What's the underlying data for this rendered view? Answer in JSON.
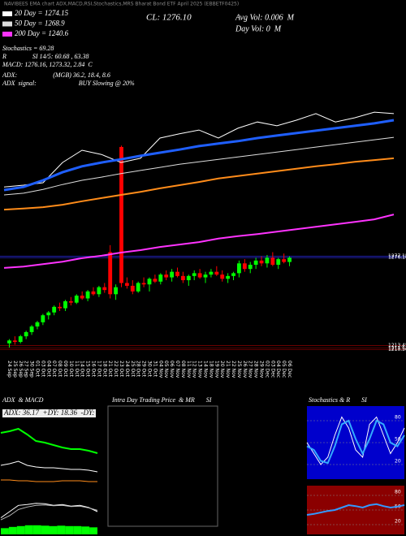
{
  "header": "NAVIBEES EMA chart ADX,MACD,RSI,Stochastics,MRS Bharat Bond ETF April 2025 (EBBETF0425)",
  "info": {
    "stoch": "Stochastics = 69.28",
    "rsi": "R                SI 14/5: 60.68 , 63.38",
    "macd": "MACD: 1276.16, 1273.32, 2.84  C",
    "adx": "ADX:                      (MGB) 36.2, 18.4, 8.6",
    "adx_signal": "ADX  signal:                          BUY Slowing @ 20%",
    "close": "CL: 1276.10",
    "avg_vol": "Avg Vol: 0.006  M",
    "day_vol": "Day Vol: 0  M"
  },
  "chart_data": [
    {
      "type": "candlestick",
      "categories": [
        "24 Sep",
        "25 Sep",
        "26 Sep",
        "27 Sep",
        "30 Sep",
        "01 Oct",
        "03 Oct",
        "04 Oct",
        "07 Oct",
        "08 Oct",
        "09 Oct",
        "10 Oct",
        "11 Oct",
        "14 Oct",
        "15 Oct",
        "16 Oct",
        "17 Oct",
        "18 Oct",
        "21 Oct",
        "22 Oct",
        "23 Oct",
        "24 Oct",
        "25 Oct",
        "28 Oct",
        "29 Oct",
        "30 Oct",
        "31 Oct",
        "04 Nov",
        "05 Nov",
        "06 Nov",
        "07 Nov",
        "08 Nov",
        "11 Nov",
        "12 Nov",
        "13 Nov",
        "14 Nov",
        "18 Nov",
        "19 Nov",
        "20 Nov",
        "21 Nov",
        "22 Nov",
        "25 Nov",
        "26 Nov",
        "27 Nov",
        "28 Nov",
        "29 Nov",
        "02 Dec",
        "03 Dec",
        "04 Dec",
        "05 Dec",
        "06 Dec"
      ],
      "open": [
        1215,
        1217,
        1216,
        1220,
        1223,
        1227,
        1230,
        1235,
        1237,
        1241,
        1240,
        1245,
        1244,
        1249,
        1247,
        1252,
        1250,
        1255,
        1280,
        1250,
        1355,
        1258,
        1256,
        1252,
        1258,
        1257,
        1261,
        1259,
        1264,
        1262,
        1266,
        1263,
        1260,
        1263,
        1265,
        1262,
        1264,
        1266,
        1264,
        1261,
        1263,
        1265,
        1272,
        1268,
        1271,
        1274,
        1272,
        1276,
        1271,
        1275,
        1273
      ],
      "high": [
        1218,
        1220,
        1221,
        1224,
        1228,
        1231,
        1236,
        1238,
        1242,
        1244,
        1246,
        1248,
        1250,
        1252,
        1253,
        1255,
        1256,
        1258,
        1285,
        1257,
        1356,
        1262,
        1260,
        1259,
        1262,
        1262,
        1264,
        1265,
        1267,
        1268,
        1269,
        1266,
        1264,
        1267,
        1268,
        1266,
        1268,
        1270,
        1267,
        1265,
        1266,
        1274,
        1275,
        1273,
        1276,
        1277,
        1278,
        1280,
        1276,
        1279,
        1277
      ],
      "low": [
        1212,
        1214,
        1215,
        1218,
        1221,
        1225,
        1228,
        1232,
        1235,
        1238,
        1238,
        1242,
        1243,
        1246,
        1245,
        1249,
        1248,
        1251,
        1247,
        1246,
        1255,
        1254,
        1250,
        1251,
        1255,
        1252,
        1258,
        1257,
        1260,
        1259,
        1262,
        1258,
        1256,
        1260,
        1261,
        1258,
        1262,
        1263,
        1259,
        1258,
        1260,
        1262,
        1266,
        1265,
        1268,
        1270,
        1269,
        1270,
        1268,
        1272,
        1270
      ],
      "close": [
        1217,
        1216,
        1220,
        1223,
        1227,
        1230,
        1235,
        1237,
        1241,
        1240,
        1245,
        1244,
        1249,
        1247,
        1252,
        1250,
        1255,
        1253,
        1250,
        1255,
        1258,
        1256,
        1252,
        1258,
        1257,
        1261,
        1259,
        1264,
        1262,
        1266,
        1263,
        1260,
        1263,
        1265,
        1262,
        1264,
        1266,
        1264,
        1261,
        1263,
        1265,
        1272,
        1268,
        1271,
        1274,
        1272,
        1276,
        1271,
        1275,
        1273,
        1276
      ],
      "up_color": "#00ff00",
      "down_color": "#ff0000",
      "ylim": [
        1205,
        1454
      ],
      "yticks": [
        1277.15,
        {
          "value": 1276.1,
          "label": "1276.10"
        },
        1213.45,
        1211.51,
        {
          "value": 1210.5,
          "label": "1210.50"
        }
      ],
      "grid_colors": [
        "#3030ff",
        "#3030ff",
        "#aa0000",
        "#aa0000",
        "#aa0000"
      ]
    },
    {
      "type": "line",
      "ylim": [
        0,
        100
      ],
      "series": [
        {
          "color": "#ffffff",
          "width": 1,
          "values": [
            48.8,
            49.3,
            50.0,
            55.8,
            59.3,
            58.1,
            55.8,
            57.0,
            62.8,
            64.0,
            65.1,
            62.8,
            65.6,
            67.4,
            66.3,
            67.9,
            69.8,
            67.4,
            68.6,
            70.2,
            69.8
          ]
        },
        {
          "color": "#1f5fff",
          "width": 3,
          "values": [
            47.9,
            48.8,
            50.7,
            53.0,
            54.7,
            55.8,
            56.7,
            57.7,
            58.6,
            59.5,
            60.5,
            61.2,
            61.9,
            62.8,
            63.5,
            64.2,
            64.9,
            65.6,
            66.3,
            67.0,
            67.9
          ]
        },
        {
          "color": "#dddddd",
          "width": 1,
          "values": [
            46.5,
            47.0,
            48.1,
            49.5,
            50.7,
            51.6,
            52.6,
            53.5,
            54.4,
            55.3,
            56.0,
            56.7,
            57.4,
            58.1,
            58.8,
            59.5,
            60.2,
            60.9,
            61.6,
            62.3,
            63.0
          ]
        },
        {
          "color": "#ff8c1a",
          "width": 2,
          "values": [
            42.3,
            42.6,
            43.0,
            43.7,
            44.7,
            45.6,
            46.5,
            47.4,
            48.4,
            49.3,
            50.2,
            51.2,
            51.9,
            52.6,
            53.3,
            54.0,
            54.7,
            55.3,
            56.0,
            56.5,
            57.0
          ]
        },
        {
          "color": "#ff33ff",
          "width": 2,
          "values": [
            25.6,
            26.0,
            26.7,
            27.4,
            28.4,
            29.1,
            30.0,
            30.7,
            31.6,
            32.3,
            33.0,
            34.0,
            34.7,
            35.3,
            36.0,
            36.7,
            37.4,
            38.1,
            38.8,
            39.5,
            40.9
          ]
        }
      ],
      "legend": [
        {
          "label": "20 Day = 1274.15",
          "color": "#ffffff"
        },
        {
          "label": "50 Day = 1268.9",
          "color": "#dddddd"
        },
        {
          "label": "200 Day = 1240.6",
          "color": "#ff33ff"
        }
      ]
    },
    {
      "type": "line",
      "title": "ADX  & MACD",
      "label": "ADX: 36.17  +DY: 18.36  -DY: 8.6",
      "ylim": [
        0,
        100
      ],
      "series": [
        {
          "color": "#00ff00",
          "width": 2,
          "values": [
            70,
            72,
            75,
            68,
            60,
            58,
            55,
            52,
            50,
            50,
            48,
            45
          ]
        },
        {
          "color": "#ffffff",
          "width": 1,
          "values": [
            30,
            32,
            35,
            30,
            28,
            27,
            27,
            26,
            25,
            25,
            24,
            22
          ]
        },
        {
          "color": "#ff8c1a",
          "width": 1,
          "values": [
            12,
            12,
            11,
            11,
            10,
            10,
            10,
            11,
            11,
            11,
            10,
            10
          ]
        }
      ]
    },
    {
      "type": "macd",
      "ylim": [
        0,
        100
      ],
      "series": [
        {
          "color": "#ffffff",
          "width": 1,
          "values": [
            40,
            55,
            70,
            72,
            75,
            74,
            70,
            72,
            68,
            70,
            65,
            55
          ]
        },
        {
          "color": "#bbbbbb",
          "width": 1,
          "values": [
            35,
            45,
            60,
            66,
            70,
            71,
            69,
            70,
            67,
            68,
            64,
            58
          ]
        }
      ],
      "histogram": {
        "color": "#00ff00",
        "values": [
          15,
          18,
          20,
          22,
          22,
          21,
          20,
          21,
          20,
          20,
          19,
          17
        ]
      }
    },
    {
      "type": "empty",
      "title": "Intra Day Trading Price  & MR       SI"
    },
    {
      "type": "line",
      "title": "Stochastics & R       SI",
      "background": "#0000cc",
      "ylim": [
        0,
        100
      ],
      "yticks": [
        20,
        50,
        80
      ],
      "series": [
        {
          "color": "#ffffff",
          "width": 1,
          "values": [
            50,
            35,
            20,
            30,
            60,
            85,
            70,
            40,
            30,
            75,
            85,
            60,
            35,
            50,
            70
          ]
        },
        {
          "color": "#33aaff",
          "width": 2,
          "values": [
            45,
            40,
            25,
            22,
            45,
            75,
            80,
            55,
            35,
            55,
            80,
            75,
            50,
            45,
            60
          ]
        }
      ]
    },
    {
      "type": "line",
      "background": "#8b0000",
      "ylim": [
        0,
        100
      ],
      "yticks": [
        20,
        50,
        80
      ],
      "series": [
        {
          "color": "#3399ff",
          "width": 2,
          "values": [
            40,
            42,
            45,
            48,
            50,
            55,
            60,
            58,
            55,
            60,
            62,
            58,
            55,
            57,
            60
          ]
        }
      ]
    }
  ]
}
